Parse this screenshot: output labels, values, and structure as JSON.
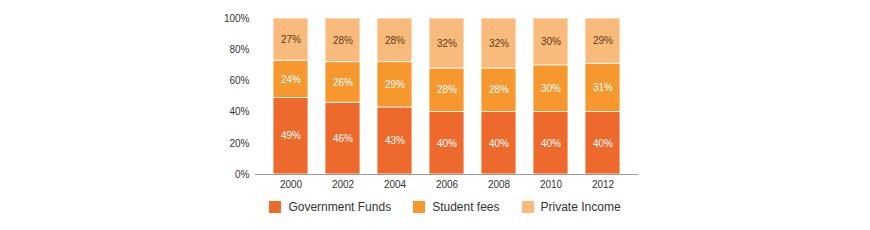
{
  "chart_data": {
    "type": "bar",
    "stacked": true,
    "data_labels": true,
    "legend": "bottom",
    "grid": false,
    "categories": [
      "2000",
      "2002",
      "2004",
      "2006",
      "2008",
      "2010",
      "2012"
    ],
    "ylim": [
      0,
      100
    ],
    "yticks": [
      {
        "value": 0,
        "label": "0%"
      },
      {
        "value": 20,
        "label": "20%"
      },
      {
        "value": 40,
        "label": "40%"
      },
      {
        "value": 60,
        "label": "60%"
      },
      {
        "value": 80,
        "label": "80%"
      },
      {
        "value": 100,
        "label": "100%"
      }
    ],
    "series": [
      {
        "name": "Government Funds",
        "color": "#ee6a2c",
        "values": [
          49,
          46,
          43,
          40,
          40,
          40,
          40
        ],
        "value_labels": [
          "49%",
          "46%",
          "43%",
          "40%",
          "40%",
          "40%",
          "40%"
        ]
      },
      {
        "name": "Student fees",
        "color": "#f7982f",
        "values": [
          24,
          26,
          29,
          28,
          28,
          30,
          31
        ],
        "value_labels": [
          "24%",
          "26%",
          "29%",
          "28%",
          "28%",
          "30%",
          "31%"
        ]
      },
      {
        "name": "Private Income",
        "color": "#f9bb7c",
        "values": [
          27,
          28,
          28,
          32,
          32,
          30,
          29
        ],
        "value_labels": [
          "27%",
          "28%",
          "28%",
          "32%",
          "32%",
          "30%",
          "29%"
        ]
      }
    ]
  }
}
